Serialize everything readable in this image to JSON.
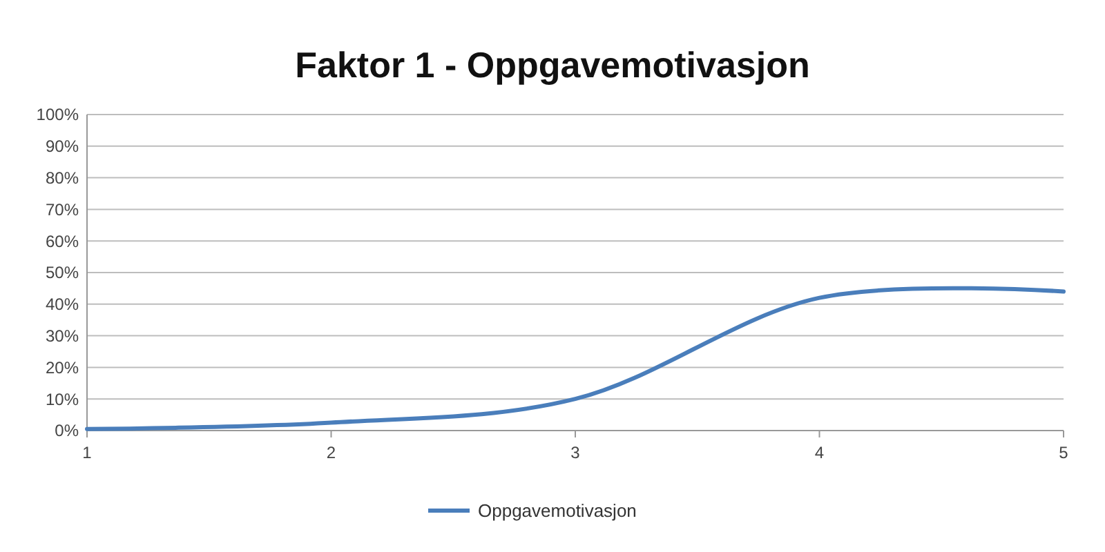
{
  "chart_data": {
    "type": "line",
    "title": "Faktor 1 - Oppgavemotivasjon",
    "x": [
      1,
      2,
      3,
      4,
      5
    ],
    "series": [
      {
        "name": "Oppgavemotivasjon",
        "color": "#4a7ebb",
        "values": [
          0.5,
          2.5,
          10,
          42,
          44
        ]
      }
    ],
    "xlim": [
      1,
      5
    ],
    "xticks": [
      1,
      2,
      3,
      4,
      5
    ],
    "ylim": [
      0,
      100
    ],
    "yticks": [
      {
        "value": 0,
        "label": "0%"
      },
      {
        "value": 10,
        "label": "10%"
      },
      {
        "value": 20,
        "label": "20%"
      },
      {
        "value": 30,
        "label": "30%"
      },
      {
        "value": 40,
        "label": "40%"
      },
      {
        "value": 50,
        "label": "50%"
      },
      {
        "value": 60,
        "label": "60%"
      },
      {
        "value": 70,
        "label": "70%"
      },
      {
        "value": 80,
        "label": "80%"
      },
      {
        "value": 90,
        "label": "90%"
      },
      {
        "value": 100,
        "label": "100%"
      }
    ],
    "grid": "y",
    "legend": "bottom",
    "marker": "none",
    "line_style": "solid"
  }
}
